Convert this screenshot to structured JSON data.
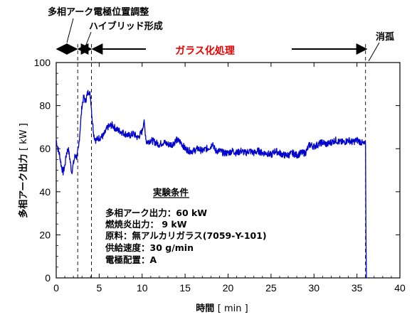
{
  "chart_data": {
    "type": "line",
    "xlabel": "時間",
    "xunit": "[ min ]",
    "ylabel": "多相アーク出力",
    "yunit": "[ kW ]",
    "xlim": [
      0,
      40
    ],
    "ylim": [
      0,
      100
    ],
    "xticks": [
      "0",
      "5",
      "10",
      "15",
      "20",
      "25",
      "30",
      "35",
      "40"
    ],
    "yticks": [
      "0",
      "20",
      "40",
      "60",
      "80",
      "100"
    ],
    "line_color": "#0000cc",
    "series": [
      {
        "x": [
          0,
          0.2,
          0.4,
          0.6,
          0.8,
          1.0,
          1.2,
          1.4,
          1.6,
          1.8,
          2.0,
          2.2,
          2.4,
          2.6,
          2.8,
          3.0,
          3.2,
          3.4,
          3.6,
          3.8,
          4.0,
          4.2,
          4.4,
          4.6,
          5.0,
          5.5,
          6.0,
          6.5,
          7.0,
          7.5,
          8.0,
          8.5,
          9.0,
          9.5,
          10.0,
          10.2,
          10.5,
          11.0,
          11.5,
          12.0,
          12.5,
          13.0,
          13.5,
          14.0,
          14.5,
          15.0,
          15.5,
          16.0,
          16.5,
          17.0,
          17.5,
          18.0,
          18.2,
          18.5,
          19.0,
          19.5,
          20.0,
          20.5,
          21.0,
          21.5,
          22.0,
          22.5,
          23.0,
          23.5,
          24.0,
          24.5,
          25.0,
          25.5,
          26.0,
          26.5,
          27.0,
          27.5,
          28.0,
          28.5,
          29.0,
          29.5,
          30.0,
          30.5,
          31.0,
          31.5,
          32.0,
          32.5,
          33.0,
          33.5,
          34.0,
          34.5,
          35.0,
          35.5,
          35.8,
          36.0,
          36.05,
          36.1
        ],
        "values": [
          64,
          60,
          57,
          52,
          49,
          52,
          58,
          60,
          55,
          49,
          53,
          57,
          56,
          60,
          70,
          80,
          84,
          82,
          85,
          87,
          84,
          73,
          66,
          64,
          65,
          66,
          70,
          71,
          69,
          68,
          67,
          66,
          67,
          65,
          68,
          73,
          63,
          64,
          63,
          62,
          63,
          62,
          62,
          64,
          63,
          60,
          59,
          59,
          60,
          59,
          60,
          61,
          63,
          59,
          59,
          58,
          58,
          59,
          58,
          59,
          58,
          59,
          58,
          59,
          58,
          58,
          57,
          59,
          58,
          57,
          57,
          58,
          57,
          58,
          58,
          62,
          61,
          62,
          63,
          62,
          63,
          64,
          63,
          63,
          64,
          63,
          64,
          63,
          62,
          62,
          20,
          0
        ]
      }
    ],
    "phase_markers_x": [
      2.5,
      4.1,
      36.0
    ],
    "annotations": {
      "multiphase_adjust": "多相アーク電極位置調整",
      "hybrid": "ハイブリッド形成",
      "glass": "ガラス化処理",
      "extinction": "消孤"
    },
    "conditions": {
      "title": "実験条件",
      "lines": [
        "多相アーク出力：60 kW",
        "燃焼炎出力： 9 kW",
        "原料：無アルカリガラス(7059-Y-101)",
        "供給速度：30 g/min",
        "電極配置：A"
      ]
    }
  }
}
